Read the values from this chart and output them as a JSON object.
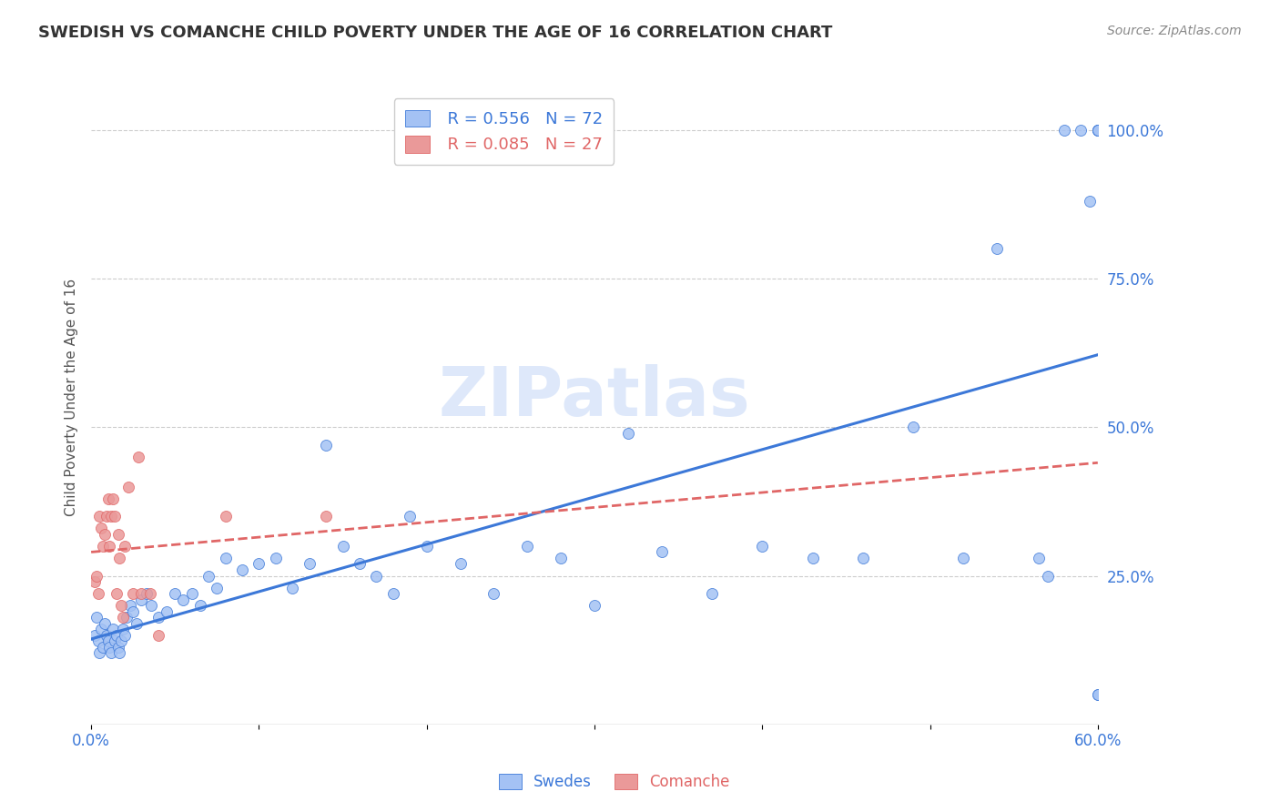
{
  "title": "SWEDISH VS COMANCHE CHILD POVERTY UNDER THE AGE OF 16 CORRELATION CHART",
  "source": "Source: ZipAtlas.com",
  "ylabel": "Child Poverty Under the Age of 16",
  "xmin": 0.0,
  "xmax": 60.0,
  "ymin": 0.0,
  "ymax": 110.0,
  "swedes_R": 0.556,
  "swedes_N": 72,
  "comanche_R": 0.085,
  "comanche_N": 27,
  "swedes_color": "#a4c2f4",
  "comanche_color": "#ea9999",
  "trend_swedes_color": "#3c78d8",
  "trend_comanche_color": "#e06666",
  "background_color": "#ffffff",
  "watermark": "ZIPatlas",
  "watermark_color": "#c9daf8",
  "swedes_x": [
    0.2,
    0.3,
    0.4,
    0.5,
    0.6,
    0.7,
    0.8,
    0.9,
    1.0,
    1.1,
    1.2,
    1.3,
    1.4,
    1.5,
    1.6,
    1.7,
    1.8,
    1.9,
    2.0,
    2.1,
    2.3,
    2.5,
    2.7,
    3.0,
    3.3,
    3.6,
    4.0,
    4.5,
    5.0,
    5.5,
    6.0,
    6.5,
    7.0,
    7.5,
    8.0,
    9.0,
    10.0,
    11.0,
    12.0,
    13.0,
    14.0,
    15.0,
    16.0,
    17.0,
    18.0,
    19.0,
    20.0,
    22.0,
    24.0,
    26.0,
    28.0,
    30.0,
    32.0,
    34.0,
    37.0,
    40.0,
    43.0,
    46.0,
    49.0,
    52.0,
    54.0,
    56.5,
    57.0,
    58.0,
    59.0,
    59.5,
    60.0,
    60.0,
    60.0,
    60.0,
    60.0,
    60.0
  ],
  "swedes_y": [
    15,
    18,
    14,
    12,
    16,
    13,
    17,
    15,
    14,
    13,
    12,
    16,
    14,
    15,
    13,
    12,
    14,
    16,
    15,
    18,
    20,
    19,
    17,
    21,
    22,
    20,
    18,
    19,
    22,
    21,
    22,
    20,
    25,
    23,
    28,
    26,
    27,
    28,
    23,
    27,
    47,
    30,
    27,
    25,
    22,
    35,
    30,
    27,
    22,
    30,
    28,
    20,
    49,
    29,
    22,
    30,
    28,
    28,
    50,
    28,
    80,
    28,
    25,
    100,
    100,
    88,
    100,
    100,
    5,
    5,
    100,
    100
  ],
  "comanche_x": [
    0.2,
    0.3,
    0.4,
    0.5,
    0.6,
    0.7,
    0.8,
    0.9,
    1.0,
    1.1,
    1.2,
    1.3,
    1.4,
    1.5,
    1.6,
    1.7,
    1.8,
    1.9,
    2.0,
    2.2,
    2.5,
    2.8,
    3.0,
    3.5,
    4.0,
    8.0,
    14.0
  ],
  "comanche_y": [
    24,
    25,
    22,
    35,
    33,
    30,
    32,
    35,
    38,
    30,
    35,
    38,
    35,
    22,
    32,
    28,
    20,
    18,
    30,
    40,
    22,
    45,
    22,
    22,
    15,
    35,
    35
  ]
}
